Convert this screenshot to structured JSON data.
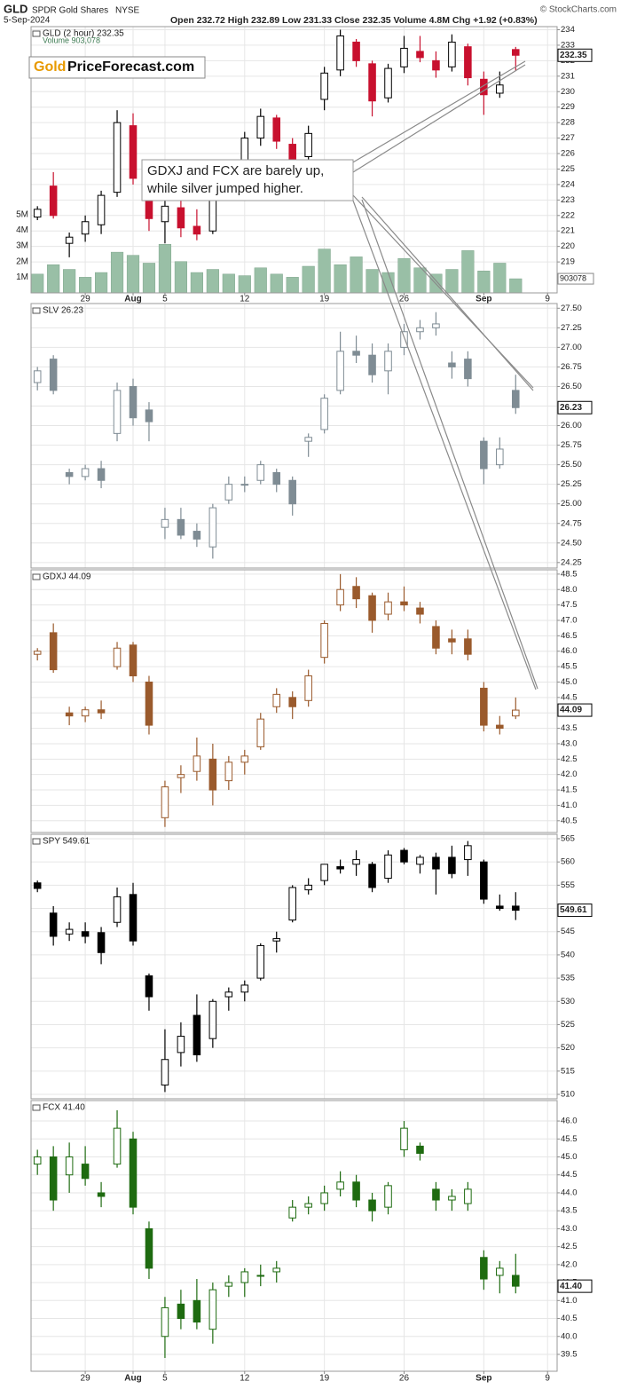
{
  "header": {
    "symbol": "GLD",
    "name": "SPDR Gold Shares",
    "exchange": "NYSE",
    "copyright": "© StockCharts.com",
    "date": "5-Sep-2024",
    "quote": "Open 232.72 High 232.89 Low 231.33 Close 232.35 Volume 4.8M Chg +1.92 (+0.83%)"
  },
  "logo": {
    "accent": "Gold",
    "text": "PriceForecast.com"
  },
  "annotation": {
    "lines": [
      "GDXJ and FCX are barely up,",
      "while silver jumped higher."
    ]
  },
  "chart_data": [
    {
      "type": "candlestick",
      "label": "GLD (2 hour) 232.35",
      "last": "232.35",
      "color": "#000000",
      "down_color": "#c8102e",
      "xlim": [
        -3.4,
        29.6
      ],
      "xticks": [
        {
          "value": 0,
          "label": "29"
        },
        {
          "value": 3,
          "label": "Aug"
        },
        {
          "value": 5,
          "label": "5"
        },
        {
          "value": 10,
          "label": "12"
        },
        {
          "value": 15,
          "label": "19"
        },
        {
          "value": 20,
          "label": "26"
        },
        {
          "value": 25,
          "label": "Sep"
        },
        {
          "value": 29,
          "label": "9"
        }
      ],
      "ylim": [
        217.0,
        234.2
      ],
      "yticks": [
        219,
        220,
        221,
        222,
        223,
        224,
        225,
        226,
        227,
        228,
        229,
        230,
        231,
        232,
        233,
        234
      ],
      "x": [
        -3,
        -2,
        -1,
        0,
        1,
        2,
        3,
        4,
        5,
        6,
        7,
        8,
        9,
        10,
        11,
        12,
        13,
        14,
        15,
        16,
        17,
        18,
        19,
        20,
        21,
        22,
        23,
        24,
        25,
        26,
        27
      ],
      "open": [
        221.9,
        223.9,
        220.2,
        220.8,
        221.4,
        223.5,
        227.8,
        224.5,
        221.6,
        222.5,
        221.3,
        221.0,
        224.2,
        225.6,
        227.0,
        228.3,
        226.6,
        225.8,
        229.5,
        231.4,
        233.2,
        231.8,
        229.6,
        231.6,
        232.6,
        232.0,
        231.6,
        232.9,
        230.8,
        229.9,
        232.72
      ],
      "high": [
        222.6,
        224.8,
        220.9,
        222.0,
        223.6,
        228.8,
        228.6,
        225.3,
        223.5,
        223.0,
        222.4,
        224.6,
        225.4,
        227.4,
        228.9,
        228.5,
        227.0,
        227.8,
        231.6,
        234.0,
        233.4,
        232.0,
        231.8,
        233.6,
        233.6,
        232.6,
        233.7,
        233.1,
        231.3,
        231.3,
        232.89
      ],
      "low": [
        221.7,
        221.8,
        219.3,
        220.3,
        220.8,
        223.2,
        224.0,
        221.0,
        220.2,
        220.6,
        220.4,
        220.8,
        223.8,
        225.2,
        226.5,
        226.3,
        224.9,
        225.4,
        228.8,
        231.0,
        231.6,
        228.4,
        229.3,
        231.2,
        231.9,
        230.9,
        231.3,
        230.4,
        228.5,
        229.6,
        231.33
      ],
      "close": [
        222.4,
        222.0,
        220.6,
        221.6,
        223.3,
        228.0,
        224.4,
        221.8,
        222.6,
        221.2,
        220.8,
        224.2,
        224.9,
        227.0,
        228.4,
        226.8,
        225.5,
        227.3,
        231.2,
        233.6,
        232.0,
        229.4,
        231.5,
        232.8,
        232.2,
        231.4,
        233.2,
        230.9,
        229.8,
        230.43,
        232.35
      ],
      "volume_label": "Volume 903,078",
      "volume_last": "903078",
      "volume_color": "#99bfa6",
      "vlim": [
        0,
        17000000
      ],
      "vticks": [
        {
          "value": 1000000,
          "label": "1M"
        },
        {
          "value": 2000000,
          "label": "2M"
        },
        {
          "value": 3000000,
          "label": "3M"
        },
        {
          "value": 4000000,
          "label": "4M"
        },
        {
          "value": 5000000,
          "label": "5M"
        }
      ],
      "volume": [
        1200000,
        1800000,
        1500000,
        1000000,
        1300000,
        2600000,
        2400000,
        1900000,
        3100000,
        2000000,
        1300000,
        1500000,
        1200000,
        1100000,
        1600000,
        1200000,
        1000000,
        1700000,
        2800000,
        1800000,
        2300000,
        1500000,
        1300000,
        2200000,
        1600000,
        1200000,
        1500000,
        2700000,
        1400000,
        1900000,
        903078
      ]
    },
    {
      "type": "candlestick",
      "label": "SLV 26.23",
      "last": "26.23",
      "color": "#7f8c94",
      "xlim": [
        -3.4,
        29.6
      ],
      "ylim": [
        24.18,
        27.56
      ],
      "yticks": [
        24.25,
        {
          "value": 24.5,
          "label": "24.50"
        },
        24.75,
        {
          "value": 25,
          "label": "25.00"
        },
        25.25,
        {
          "value": 25.5,
          "label": "25.50"
        },
        25.75,
        {
          "value": 26,
          "label": "26.00"
        },
        26.25,
        {
          "value": 26.5,
          "label": "26.50"
        },
        26.75,
        {
          "value": 27,
          "label": "27.00"
        },
        27.25,
        {
          "value": 27.5,
          "label": "27.50"
        }
      ],
      "x": [
        -3,
        -2,
        -1,
        0,
        1,
        2,
        3,
        4,
        5,
        6,
        7,
        8,
        9,
        10,
        11,
        12,
        13,
        14,
        15,
        16,
        17,
        18,
        19,
        20,
        21,
        22,
        23,
        24,
        25,
        26,
        27
      ],
      "open": [
        26.55,
        26.85,
        25.4,
        25.35,
        25.45,
        25.9,
        26.5,
        26.2,
        24.7,
        24.8,
        24.65,
        24.45,
        25.05,
        25.25,
        25.3,
        25.4,
        25.3,
        25.8,
        25.95,
        26.45,
        26.95,
        26.9,
        26.7,
        27.0,
        27.2,
        27.25,
        26.8,
        26.85,
        25.8,
        25.5,
        26.45
      ],
      "high": [
        26.75,
        26.9,
        25.45,
        25.5,
        25.55,
        26.55,
        26.6,
        26.3,
        24.95,
        24.95,
        24.75,
        25.0,
        25.35,
        25.35,
        25.55,
        25.45,
        25.35,
        25.9,
        26.4,
        27.2,
        27.15,
        27.05,
        27.05,
        27.3,
        27.35,
        27.45,
        26.95,
        26.95,
        25.85,
        25.85,
        26.65
      ],
      "low": [
        26.45,
        26.4,
        25.25,
        25.3,
        25.2,
        25.8,
        26.0,
        25.8,
        24.55,
        24.55,
        24.45,
        24.3,
        25.0,
        25.15,
        25.25,
        25.15,
        24.85,
        25.6,
        25.9,
        26.4,
        26.8,
        26.55,
        26.4,
        26.9,
        27.1,
        27.15,
        26.6,
        26.5,
        25.25,
        25.45,
        26.15
      ],
      "close": [
        26.7,
        26.45,
        25.35,
        25.45,
        25.3,
        26.45,
        26.1,
        26.05,
        24.8,
        24.6,
        24.55,
        24.95,
        25.25,
        25.25,
        25.5,
        25.25,
        25.0,
        25.85,
        26.35,
        26.95,
        26.9,
        26.65,
        26.95,
        27.2,
        27.25,
        27.3,
        26.75,
        26.6,
        25.45,
        25.7,
        26.23
      ]
    },
    {
      "type": "candlestick",
      "label": "GDXJ 44.09",
      "last": "44.09",
      "color": "#9a5a2c",
      "xlim": [
        -3.4,
        29.6
      ],
      "ylim": [
        40.12,
        48.64
      ],
      "yticks": [
        40.5,
        {
          "value": 41,
          "label": "41.0"
        },
        41.5,
        {
          "value": 42,
          "label": "42.0"
        },
        42.5,
        {
          "value": 43,
          "label": "43.0"
        },
        43.5,
        {
          "value": 44,
          "label": "44.0"
        },
        44.5,
        {
          "value": 45,
          "label": "45.0"
        },
        45.5,
        {
          "value": 46,
          "label": "46.0"
        },
        46.5,
        {
          "value": 47,
          "label": "47.0"
        },
        47.5,
        {
          "value": 48,
          "label": "48.0"
        },
        48.5
      ],
      "x": [
        -3,
        -2,
        -1,
        0,
        1,
        2,
        3,
        4,
        5,
        6,
        7,
        8,
        9,
        10,
        11,
        12,
        13,
        14,
        15,
        16,
        17,
        18,
        19,
        20,
        21,
        22,
        23,
        24,
        25,
        26,
        27
      ],
      "open": [
        45.9,
        46.6,
        44.0,
        43.9,
        44.1,
        45.5,
        46.2,
        45.0,
        40.6,
        41.9,
        42.1,
        42.5,
        41.8,
        42.4,
        42.9,
        44.2,
        44.5,
        44.4,
        45.8,
        47.5,
        48.1,
        47.8,
        47.2,
        47.6,
        47.4,
        46.8,
        46.4,
        46.4,
        44.8,
        43.6,
        43.9
      ],
      "high": [
        46.1,
        46.9,
        44.2,
        44.2,
        44.4,
        46.3,
        46.3,
        45.2,
        41.8,
        42.3,
        43.2,
        43.0,
        42.6,
        42.8,
        44.0,
        44.8,
        44.7,
        45.4,
        47.0,
        48.5,
        48.4,
        47.9,
        47.9,
        48.1,
        47.6,
        47.0,
        46.7,
        46.7,
        45.0,
        43.9,
        44.5
      ],
      "low": [
        45.7,
        45.3,
        43.6,
        43.7,
        43.8,
        45.4,
        45.0,
        43.3,
        40.3,
        41.4,
        41.8,
        41.0,
        41.5,
        42.0,
        42.8,
        44.0,
        43.8,
        44.2,
        45.6,
        47.3,
        47.4,
        46.6,
        47.0,
        47.3,
        46.9,
        45.9,
        45.9,
        45.7,
        43.4,
        43.3,
        43.8
      ],
      "close": [
        46.0,
        45.4,
        43.9,
        44.1,
        44.0,
        46.1,
        45.2,
        43.6,
        41.6,
        42.0,
        42.6,
        41.5,
        42.4,
        42.6,
        43.8,
        44.6,
        44.2,
        45.2,
        46.9,
        48.0,
        47.7,
        47.0,
        47.6,
        47.5,
        47.2,
        46.1,
        46.3,
        45.9,
        43.6,
        43.5,
        44.09
      ]
    },
    {
      "type": "candlestick",
      "label": "SPY 549.61",
      "last": "549.61",
      "color": "#000000",
      "xlim": [
        -3.4,
        29.6
      ],
      "ylim": [
        509.05,
        565.95
      ],
      "yticks": [
        510,
        515,
        520,
        525,
        530,
        535,
        540,
        545,
        550,
        555,
        560,
        565
      ],
      "x": [
        -3,
        -2,
        -1,
        0,
        1,
        2,
        3,
        4,
        5,
        6,
        7,
        8,
        9,
        10,
        11,
        12,
        13,
        14,
        15,
        16,
        17,
        18,
        19,
        20,
        21,
        22,
        23,
        24,
        25,
        26,
        27
      ],
      "open": [
        555.5,
        549.0,
        544.5,
        545.0,
        544.8,
        547.0,
        553.0,
        535.5,
        512.0,
        519.0,
        527.0,
        522.0,
        531.0,
        532.0,
        535.0,
        543.0,
        547.5,
        554.0,
        556.0,
        559.0,
        559.5,
        559.5,
        556.5,
        562.5,
        559.5,
        561.0,
        561.0,
        560.5,
        560.0,
        550.5,
        550.5
      ],
      "high": [
        556.0,
        550.5,
        547.0,
        547.0,
        546.0,
        554.5,
        555.5,
        536.0,
        524.0,
        525.5,
        531.5,
        530.5,
        533.0,
        534.5,
        542.5,
        545.0,
        555.0,
        556.5,
        559.5,
        560.5,
        562.5,
        560.0,
        562.5,
        563.0,
        561.5,
        562.0,
        563.5,
        564.5,
        560.5,
        553.0,
        553.5
      ],
      "low": [
        553.5,
        542.0,
        543.0,
        542.5,
        538.0,
        546.0,
        542.0,
        528.0,
        510.5,
        516.0,
        517.0,
        520.0,
        528.0,
        530.0,
        534.5,
        540.5,
        547.0,
        553.0,
        555.0,
        557.5,
        557.0,
        553.5,
        555.5,
        559.5,
        557.5,
        553.0,
        556.5,
        557.0,
        551.0,
        549.5,
        547.5
      ],
      "close": [
        554.3,
        544.0,
        545.5,
        544.0,
        540.5,
        552.5,
        543.0,
        531.0,
        517.5,
        522.5,
        518.5,
        530.0,
        532.0,
        533.5,
        542.0,
        543.5,
        554.5,
        555.0,
        559.5,
        558.5,
        560.5,
        554.5,
        561.5,
        560.0,
        561.0,
        558.5,
        557.5,
        563.5,
        552.0,
        550.0,
        549.61
      ]
    },
    {
      "type": "candlestick",
      "label": "FCX 41.40",
      "last": "41.40",
      "color": "#1e6b10",
      "xlim": [
        -3.4,
        29.6
      ],
      "xticks": [
        {
          "value": 0,
          "label": "29"
        },
        {
          "value": 3,
          "label": "Aug"
        },
        {
          "value": 5,
          "label": "5"
        },
        {
          "value": 10,
          "label": "12"
        },
        {
          "value": 15,
          "label": "19"
        },
        {
          "value": 20,
          "label": "26"
        },
        {
          "value": 25,
          "label": "Sep"
        },
        {
          "value": 29,
          "label": "9"
        }
      ],
      "ylim": [
        39.03,
        46.57
      ],
      "yticks": [
        39.5,
        {
          "value": 40,
          "label": "40.0"
        },
        40.5,
        {
          "value": 41,
          "label": "41.0"
        },
        41.5,
        {
          "value": 42,
          "label": "42.0"
        },
        42.5,
        {
          "value": 43,
          "label": "43.0"
        },
        43.5,
        {
          "value": 44,
          "label": "44.0"
        },
        44.5,
        {
          "value": 45,
          "label": "45.0"
        },
        45.5,
        {
          "value": 46,
          "label": "46.0"
        }
      ],
      "x": [
        -3,
        -2,
        -1,
        0,
        1,
        2,
        3,
        4,
        5,
        6,
        7,
        8,
        9,
        10,
        11,
        12,
        13,
        14,
        15,
        16,
        17,
        18,
        19,
        20,
        21,
        22,
        23,
        24,
        25,
        26,
        27
      ],
      "open": [
        44.8,
        45.0,
        44.5,
        44.8,
        44.0,
        44.8,
        45.5,
        43.0,
        40.0,
        40.9,
        41.0,
        40.2,
        41.4,
        41.5,
        41.7,
        41.8,
        43.3,
        43.6,
        43.7,
        44.1,
        44.3,
        43.8,
        43.6,
        45.2,
        45.3,
        44.1,
        43.8,
        43.7,
        42.2,
        41.7,
        41.7
      ],
      "high": [
        45.2,
        45.3,
        45.4,
        45.3,
        44.3,
        46.3,
        45.7,
        43.2,
        41.1,
        41.3,
        41.6,
        41.5,
        41.7,
        41.9,
        42.0,
        42.1,
        43.8,
        43.9,
        44.2,
        44.6,
        44.5,
        44.0,
        44.3,
        46.0,
        45.4,
        44.3,
        44.1,
        44.3,
        42.4,
        42.1,
        42.3
      ],
      "low": [
        44.5,
        43.5,
        44.0,
        44.2,
        43.6,
        44.7,
        43.4,
        41.6,
        39.4,
        40.2,
        40.2,
        39.8,
        41.1,
        41.1,
        41.4,
        41.5,
        43.2,
        43.4,
        43.5,
        43.9,
        43.6,
        43.2,
        43.4,
        45.0,
        44.9,
        43.5,
        43.5,
        43.5,
        41.3,
        41.2,
        41.2
      ],
      "close": [
        45.0,
        43.8,
        45.0,
        44.4,
        43.9,
        45.8,
        43.6,
        41.9,
        40.8,
        40.5,
        40.4,
        41.3,
        41.5,
        41.8,
        41.7,
        41.9,
        43.6,
        43.7,
        44.0,
        44.3,
        43.8,
        43.5,
        44.2,
        45.8,
        45.1,
        43.8,
        43.9,
        44.1,
        41.6,
        41.9,
        41.4
      ]
    }
  ]
}
